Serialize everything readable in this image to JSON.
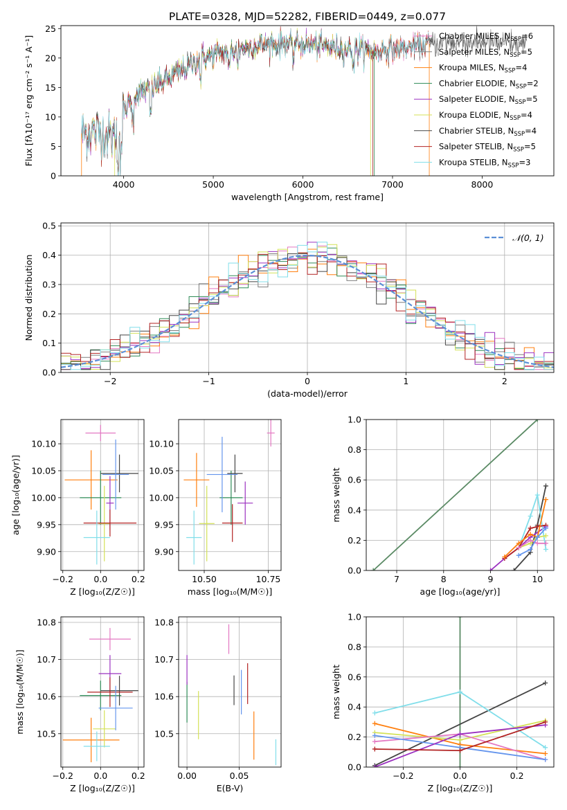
{
  "figure_title": "PLATE=0328, MJD=52282, FIBERID=0449, z=0.077",
  "colors": {
    "chabrier_miles": "#e377c2",
    "salpeter_miles": "#7f7f7f",
    "kroupa_miles": "#ff7f0e",
    "chabrier_elodie": "#2e8b57",
    "salpeter_elodie": "#9b30c0",
    "kroupa_elodie": "#d4e157",
    "chabrier_stelib": "#444444",
    "salpeter_stelib": "#b22222",
    "kroupa_stelib": "#80deea",
    "blue": "#6495ed",
    "normal": "#5b8fd6",
    "green_line": "#5a8a64"
  },
  "chart_data": [
    {
      "id": "spectrum",
      "type": "line",
      "xlabel": "wavelength [Angstrom, rest frame]",
      "ylabel": "Flux [fλ10⁻¹⁷ erg cm⁻² s⁻¹ A⁻¹]",
      "xlim": [
        3300,
        8800
      ],
      "ylim": [
        0,
        25.5
      ],
      "xticks": [
        "4000",
        "5000",
        "6000",
        "7000",
        "8000"
      ],
      "yticks": [
        "0",
        "5",
        "10",
        "15",
        "20",
        "25"
      ],
      "continuum": [
        [
          3530,
          7.2
        ],
        [
          3700,
          7.5
        ],
        [
          3900,
          6.5
        ],
        [
          4000,
          10.5
        ],
        [
          4100,
          13.5
        ],
        [
          4300,
          14.8
        ],
        [
          4600,
          17.5
        ],
        [
          4900,
          20.2
        ],
        [
          5200,
          21.3
        ],
        [
          5500,
          22.1
        ],
        [
          5800,
          22.5
        ],
        [
          6100,
          22.3
        ],
        [
          6500,
          21.5
        ],
        [
          6800,
          21.2
        ],
        [
          7100,
          21.6
        ],
        [
          7400,
          22.4
        ],
        [
          7800,
          22.8
        ],
        [
          8200,
          22.6
        ],
        [
          8500,
          22.0
        ]
      ],
      "series": [
        {
          "name": "Chabrier MILES, N_SSP=6",
          "label": "Chabrier MILES, N",
          "sub": "SSP",
          "suffix": "=6",
          "color": "#e377c2",
          "end": 7400
        },
        {
          "name": "Salpeter MILES, N_SSP=5",
          "label": "Salpeter MILES, N",
          "sub": "SSP",
          "suffix": "=5",
          "color": "#7f7f7f",
          "end": 8500
        },
        {
          "name": "Kroupa MILES, N_SSP=4",
          "label": "Kroupa MILES, N",
          "sub": "SSP",
          "suffix": "=4",
          "color": "#ff7f0e",
          "end": 7400
        },
        {
          "name": "Chabrier ELODIE, N_SSP=2",
          "label": "Chabrier ELODIE, N",
          "sub": "SSP",
          "suffix": "=2",
          "color": "#2e8b57",
          "end": 6800
        },
        {
          "name": "Salpeter ELODIE, N_SSP=5",
          "label": "Salpeter ELODIE, N",
          "sub": "SSP",
          "suffix": "=5",
          "color": "#9b30c0",
          "end": 6800
        },
        {
          "name": "Kroupa ELODIE, N_SSP=4",
          "label": "Kroupa ELODIE, N",
          "sub": "SSP",
          "suffix": "=4",
          "color": "#d4e157",
          "end": 6800
        },
        {
          "name": "Chabrier STELIB, N_SSP=4",
          "label": "Chabrier STELIB, N",
          "sub": "SSP",
          "suffix": "=4",
          "color": "#444444",
          "end": 8500
        },
        {
          "name": "Salpeter STELIB, N_SSP=5",
          "label": "Salpeter STELIB, N",
          "sub": "SSP",
          "suffix": "=5",
          "color": "#b22222",
          "end": 7400
        },
        {
          "name": "Kroupa STELIB, N_SSP=3",
          "label": "Kroupa STELIB, N",
          "sub": "SSP",
          "suffix": "=3",
          "color": "#80deea",
          "end": 7400
        }
      ],
      "legend": "upper right"
    },
    {
      "id": "residuals",
      "type": "histogram",
      "xlabel": "(data-model)/error",
      "ylabel": "Normed distribution",
      "xlim": [
        -2.5,
        2.5
      ],
      "ylim": [
        0,
        0.51
      ],
      "xticks": [
        "−2",
        "−1",
        "0",
        "1",
        "2"
      ],
      "yticks": [
        "0.0",
        "0.1",
        "0.2",
        "0.3",
        "0.4",
        "0.5"
      ],
      "bin_width": 0.1,
      "legend_label": "𝒩(0, 1)",
      "grid": true
    },
    {
      "id": "age_vs_Z",
      "type": "errorbar",
      "xlabel": "Z [log₁₀(Z/Z☉)]",
      "ylabel": "age  [log₁₀(age/yr)]",
      "xlim": [
        -0.21,
        0.23
      ],
      "ylim": [
        9.865,
        10.145
      ],
      "xticks": [
        "−0.2",
        "0.0",
        "0.2"
      ],
      "yticks": [
        "9.90",
        "9.95",
        "10.00",
        "10.05",
        "10.10"
      ],
      "points": [
        {
          "c": "#e377c2",
          "x": 0.0,
          "y": 10.12,
          "ex": 0.08,
          "ey": 0.015
        },
        {
          "c": "#ff7f0e",
          "x": -0.05,
          "y": 10.033,
          "ex": 0.14,
          "ey": 0.055
        },
        {
          "c": "#2e8b57",
          "x": 0.0,
          "y": 10.0,
          "ex": 0.11,
          "ey": 0.05
        },
        {
          "c": "#9b30c0",
          "x": 0.05,
          "y": 9.99,
          "ex": 0.02,
          "ey": 0.05
        },
        {
          "c": "#d4e157",
          "x": 0.02,
          "y": 9.952,
          "ex": 0.03,
          "ey": 0.07
        },
        {
          "c": "#444444",
          "x": 0.1,
          "y": 10.045,
          "ex": 0.1,
          "ey": 0.035
        },
        {
          "c": "#b22222",
          "x": 0.05,
          "y": 9.953,
          "ex": 0.14,
          "ey": 0.025
        },
        {
          "c": "#80deea",
          "x": -0.02,
          "y": 9.926,
          "ex": 0.07,
          "ey": 0.05
        },
        {
          "c": "#6495ed",
          "x": 0.08,
          "y": 10.043,
          "ex": 0.07,
          "ey": 0.065
        }
      ]
    },
    {
      "id": "age_vs_mass",
      "type": "errorbar",
      "xlabel": "mass [log₁₀(M/M☉)]",
      "ylabel": "",
      "xlim": [
        10.4,
        10.8
      ],
      "ylim": [
        9.865,
        10.145
      ],
      "xticks": [
        "10.50",
        "10.75"
      ],
      "yticks": [
        "9.90",
        "9.95",
        "10.00",
        "10.05",
        "10.10"
      ],
      "points": [
        {
          "c": "#e377c2",
          "x": 10.76,
          "y": 10.12,
          "ex": 0.015,
          "ey": 0.025
        },
        {
          "c": "#ff7f0e",
          "x": 10.47,
          "y": 10.033,
          "ex": 0.05,
          "ey": 0.05
        },
        {
          "c": "#2e8b57",
          "x": 10.605,
          "y": 10.0,
          "ex": 0.045,
          "ey": 0.05
        },
        {
          "c": "#9b30c0",
          "x": 10.66,
          "y": 9.99,
          "ex": 0.03,
          "ey": 0.04
        },
        {
          "c": "#d4e157",
          "x": 10.51,
          "y": 9.952,
          "ex": 0.03,
          "ey": 0.07
        },
        {
          "c": "#444444",
          "x": 10.62,
          "y": 10.045,
          "ex": 0.03,
          "ey": 0.035
        },
        {
          "c": "#b22222",
          "x": 10.61,
          "y": 9.953,
          "ex": 0.04,
          "ey": 0.035
        },
        {
          "c": "#80deea",
          "x": 10.46,
          "y": 9.926,
          "ex": 0.03,
          "ey": 0.05
        },
        {
          "c": "#6495ed",
          "x": 10.57,
          "y": 10.043,
          "ex": 0.06,
          "ey": 0.07
        }
      ]
    },
    {
      "id": "weight_vs_age",
      "type": "line",
      "xlabel": "age  [log₁₀(age/yr)]",
      "ylabel": "mass weight",
      "xlim": [
        6.35,
        10.35
      ],
      "ylim": [
        0,
        1.0
      ],
      "xticks": [
        "7",
        "8",
        "9",
        "10"
      ],
      "yticks": [
        "0.0",
        "0.2",
        "0.4",
        "0.6",
        "0.8",
        "1.0"
      ],
      "grid": true,
      "series": [
        {
          "c": "#5a8a64",
          "x": [
            6.5,
            10.0
          ],
          "y": [
            0.0,
            1.0
          ]
        },
        {
          "c": "#444444",
          "x": [
            9.5,
            9.85,
            10.0,
            10.18
          ],
          "y": [
            0.0,
            0.12,
            0.3,
            0.56
          ]
        },
        {
          "c": "#9b30c0",
          "x": [
            9.0,
            9.3,
            9.6,
            9.85,
            10.18
          ],
          "y": [
            0.0,
            0.08,
            0.15,
            0.22,
            0.29
          ]
        },
        {
          "c": "#80deea",
          "x": [
            9.6,
            9.85,
            10.0,
            10.18
          ],
          "y": [
            0.15,
            0.36,
            0.5,
            0.14
          ]
        },
        {
          "c": "#b22222",
          "x": [
            9.3,
            9.6,
            9.85,
            10.0,
            10.18
          ],
          "y": [
            0.08,
            0.15,
            0.28,
            0.29,
            0.3
          ]
        },
        {
          "c": "#ff7f0e",
          "x": [
            9.3,
            9.6,
            9.85,
            10.0,
            10.18
          ],
          "y": [
            0.09,
            0.18,
            0.24,
            0.22,
            0.47
          ]
        },
        {
          "c": "#d4e157",
          "x": [
            9.6,
            9.85,
            10.0,
            10.18
          ],
          "y": [
            0.15,
            0.18,
            0.22,
            0.23
          ]
        },
        {
          "c": "#e377c2",
          "x": [
            9.6,
            9.85,
            10.0,
            10.18
          ],
          "y": [
            0.15,
            0.2,
            0.18,
            0.18
          ]
        },
        {
          "c": "#6495ed",
          "x": [
            9.6,
            9.85,
            10.0,
            10.18
          ],
          "y": [
            0.1,
            0.14,
            0.22,
            0.28
          ]
        }
      ]
    },
    {
      "id": "mass_vs_Z",
      "type": "errorbar",
      "xlabel": "Z [log₁₀(Z/Z☉)]",
      "ylabel": "mass [log₁₀(M/M☉)]",
      "xlim": [
        -0.21,
        0.23
      ],
      "ylim": [
        10.41,
        10.815
      ],
      "xticks": [
        "−0.2",
        "0.0",
        "0.2"
      ],
      "yticks": [
        "10.5",
        "10.6",
        "10.7",
        "10.8"
      ],
      "points": [
        {
          "c": "#e377c2",
          "x": 0.05,
          "y": 10.755,
          "ex": 0.11,
          "ey": 0.03
        },
        {
          "c": "#ff7f0e",
          "x": -0.05,
          "y": 10.483,
          "ex": 0.15,
          "ey": 0.06
        },
        {
          "c": "#2e8b57",
          "x": 0.0,
          "y": 10.603,
          "ex": 0.11,
          "ey": 0.04
        },
        {
          "c": "#9b30c0",
          "x": 0.05,
          "y": 10.662,
          "ex": 0.06,
          "ey": 0.05
        },
        {
          "c": "#d4e157",
          "x": 0.02,
          "y": 10.513,
          "ex": 0.06,
          "ey": 0.05
        },
        {
          "c": "#444444",
          "x": 0.1,
          "y": 10.616,
          "ex": 0.1,
          "ey": 0.04
        },
        {
          "c": "#b22222",
          "x": 0.05,
          "y": 10.612,
          "ex": 0.12,
          "ey": 0.04
        },
        {
          "c": "#80deea",
          "x": -0.02,
          "y": 10.466,
          "ex": 0.07,
          "ey": 0.04
        },
        {
          "c": "#6495ed",
          "x": 0.08,
          "y": 10.569,
          "ex": 0.09,
          "ey": 0.06
        }
      ]
    },
    {
      "id": "mass_vs_ebv",
      "type": "errorbar",
      "xlabel": "E(B-V)",
      "ylabel": "",
      "xlim": [
        -0.008,
        0.09
      ],
      "ylim": [
        10.41,
        10.815
      ],
      "xticks": [
        "0.00",
        "0.05"
      ],
      "yticks": [
        "10.5",
        "10.6",
        "10.7",
        "10.8"
      ],
      "points": [
        {
          "c": "#e377c2",
          "x": 0.04,
          "y": 10.755,
          "ex": 0.0,
          "ey": 0.04
        },
        {
          "c": "#ff7f0e",
          "x": 0.064,
          "y": 10.495,
          "ex": 0.0,
          "ey": 0.065
        },
        {
          "c": "#2e8b57",
          "x": 0.0,
          "y": 10.585,
          "ex": 0.0,
          "ey": 0.055
        },
        {
          "c": "#9b30c0",
          "x": 0.0,
          "y": 10.672,
          "ex": 0.0,
          "ey": 0.04
        },
        {
          "c": "#d4e157",
          "x": 0.011,
          "y": 10.55,
          "ex": 0.0,
          "ey": 0.065
        },
        {
          "c": "#444444",
          "x": 0.045,
          "y": 10.617,
          "ex": 0.0,
          "ey": 0.04
        },
        {
          "c": "#b22222",
          "x": 0.058,
          "y": 10.635,
          "ex": 0.0,
          "ey": 0.055
        },
        {
          "c": "#80deea",
          "x": 0.085,
          "y": 10.45,
          "ex": 0.0,
          "ey": 0.035
        },
        {
          "c": "#6495ed",
          "x": 0.052,
          "y": 10.612,
          "ex": 0.0,
          "ey": 0.06
        }
      ]
    },
    {
      "id": "weight_vs_Z",
      "type": "line",
      "xlabel": "Z [log₁₀(Z/Z☉)]",
      "ylabel": "mass weight",
      "xlim": [
        -0.33,
        0.33
      ],
      "ylim": [
        0,
        1.0
      ],
      "xticks": [
        "−0.2",
        "0.0",
        "0.2"
      ],
      "yticks": [
        "0.0",
        "0.2",
        "0.4",
        "0.6",
        "0.8",
        "1.0"
      ],
      "grid": true,
      "series": [
        {
          "c": "#5a8a64",
          "x": [
            0.0,
            0.0
          ],
          "y": [
            0.0,
            1.0
          ]
        },
        {
          "c": "#444444",
          "x": [
            -0.3,
            0.3
          ],
          "y": [
            0.01,
            0.56
          ]
        },
        {
          "c": "#80deea",
          "x": [
            -0.3,
            0.0,
            0.3
          ],
          "y": [
            0.36,
            0.5,
            0.13
          ]
        },
        {
          "c": "#ff7f0e",
          "x": [
            -0.3,
            0.0,
            0.3
          ],
          "y": [
            0.29,
            0.15,
            0.09
          ]
        },
        {
          "c": "#d4e157",
          "x": [
            -0.3,
            0.0,
            0.3
          ],
          "y": [
            0.23,
            0.18,
            0.31
          ]
        },
        {
          "c": "#e377c2",
          "x": [
            -0.3,
            0.0,
            0.3
          ],
          "y": [
            0.17,
            0.22,
            0.05
          ]
        },
        {
          "c": "#6495ed",
          "x": [
            -0.3,
            0.0,
            0.3
          ],
          "y": [
            0.21,
            0.13,
            0.05
          ]
        },
        {
          "c": "#9b30c0",
          "x": [
            -0.3,
            0.0,
            0.3
          ],
          "y": [
            0.0,
            0.22,
            0.28
          ]
        },
        {
          "c": "#b22222",
          "x": [
            -0.3,
            0.0,
            0.3
          ],
          "y": [
            0.12,
            0.11,
            0.3
          ]
        }
      ]
    }
  ]
}
